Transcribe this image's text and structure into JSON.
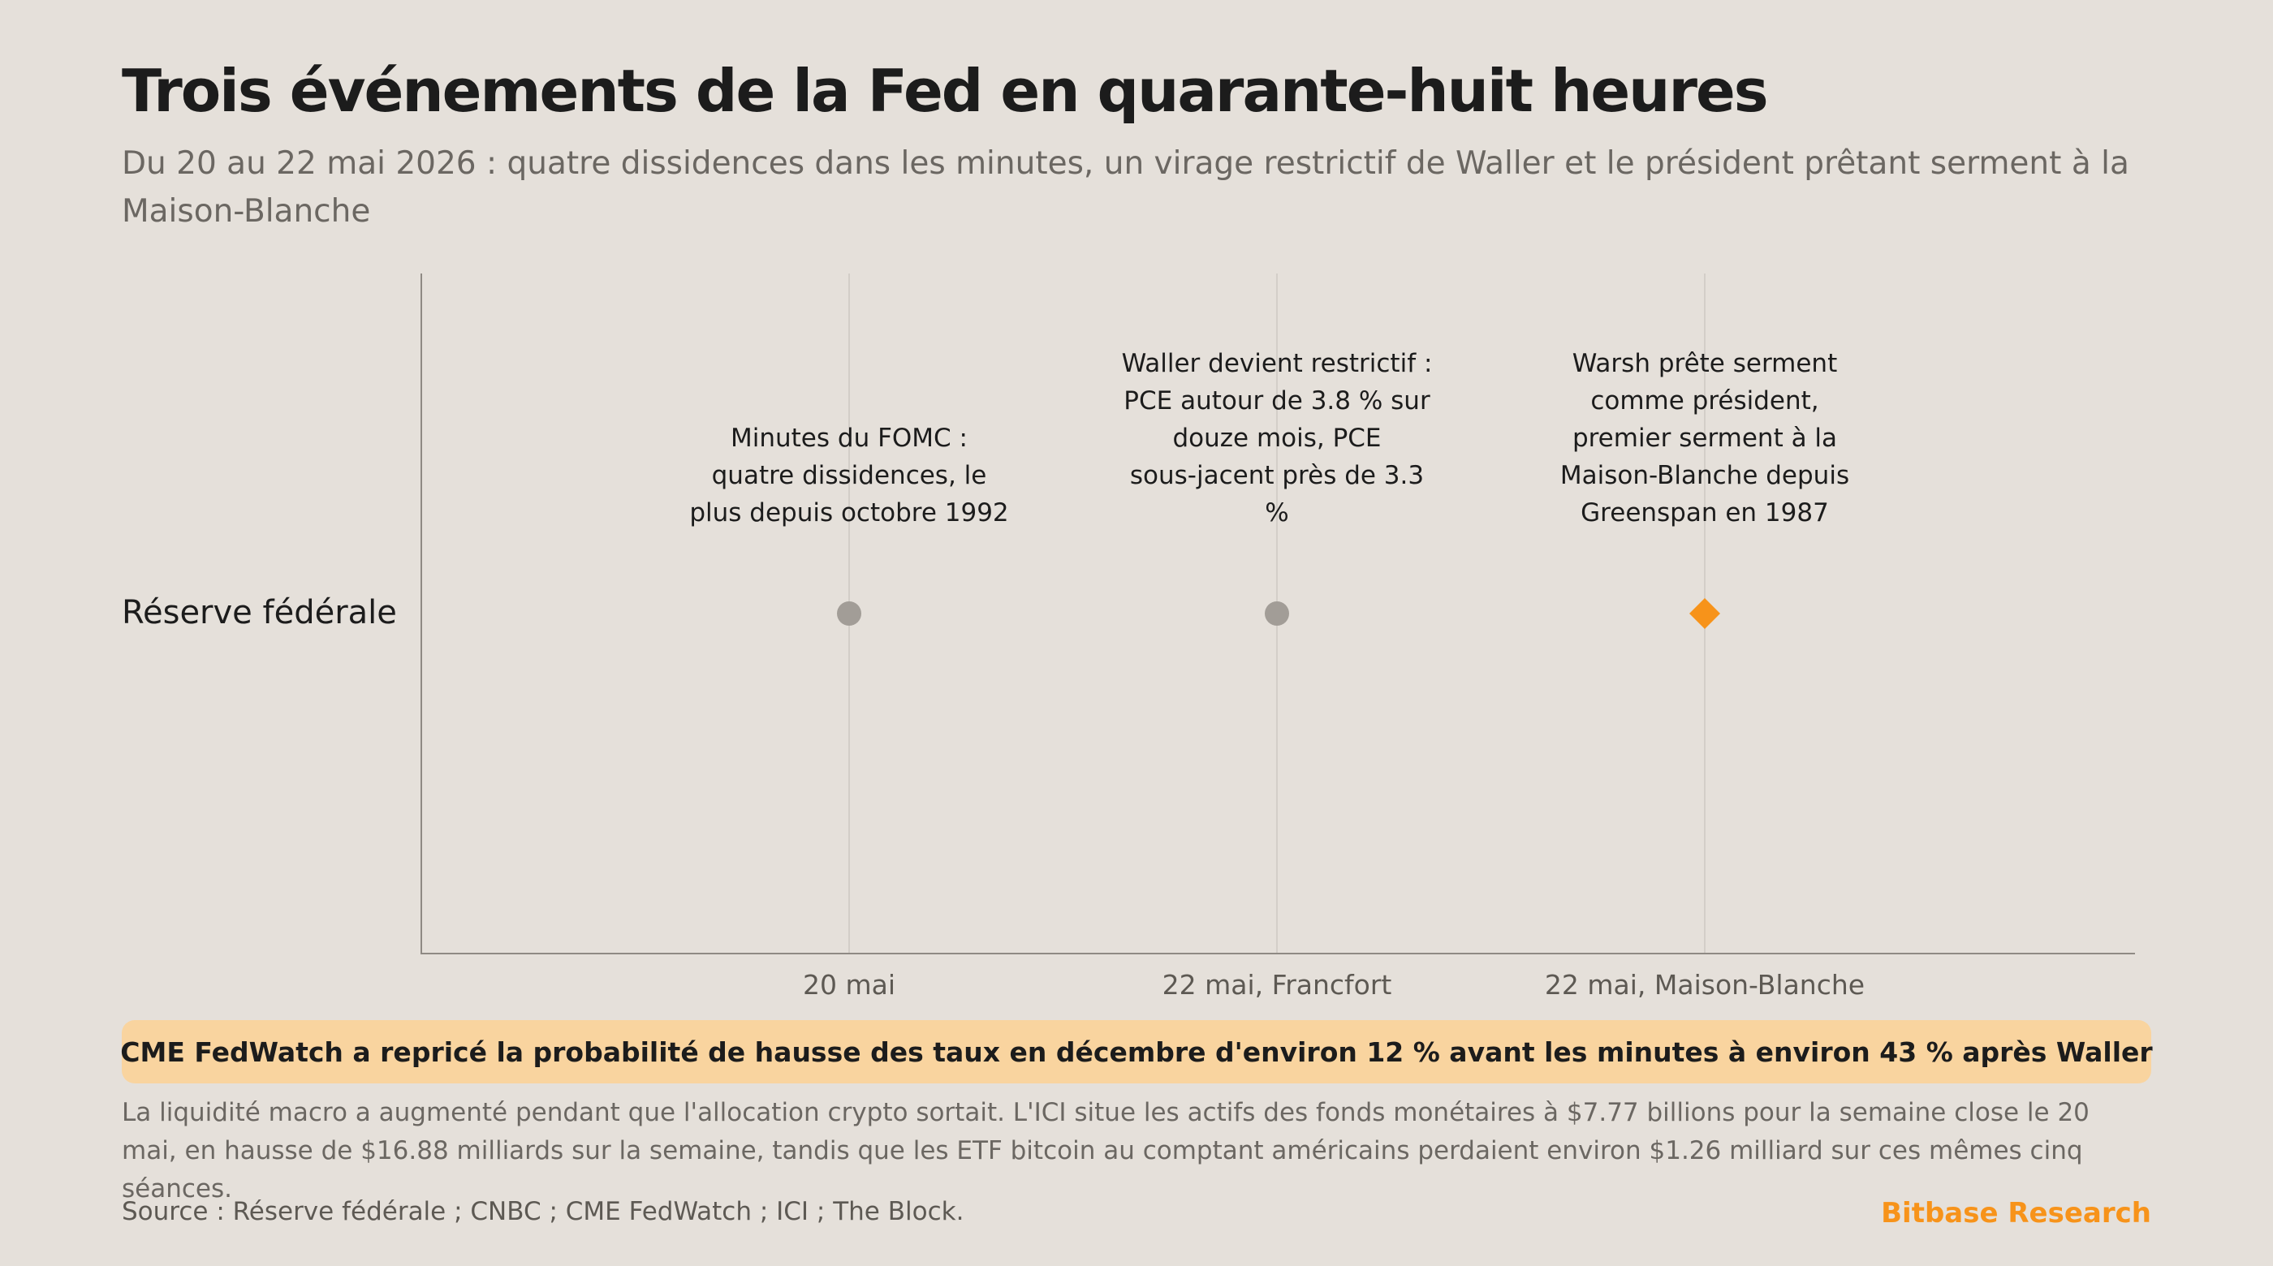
{
  "title": "Trois événements de la Fed en quarante-huit heures",
  "subtitle": "Du 20 au 22 mai 2026 : quatre dissidences dans les minutes, un virage restrictif de Waller et le président prêtant serment à la Maison-Blanche",
  "chart_data": {
    "type": "scatter",
    "row_label": "Réserve fédérale",
    "categories": [
      "20 mai",
      "22 mai, Francfort",
      "22 mai, Maison-Blanche"
    ],
    "events": [
      {
        "category": "20 mai",
        "annotation": [
          "Minutes du FOMC :",
          "quatre dissidences, le",
          "plus depuis octobre 1992"
        ],
        "marker": "circle",
        "color": "#a29d97"
      },
      {
        "category": "22 mai, Francfort",
        "annotation": [
          "Waller devient restrictif :",
          "PCE autour de 3.8 % sur",
          "douze mois, PCE",
          "sous-jacent près de 3.3",
          "%"
        ],
        "marker": "circle",
        "color": "#a29d97"
      },
      {
        "category": "22 mai, Maison-Blanche",
        "annotation": [
          "Warsh prête serment",
          "comme président,",
          "premier serment à la",
          "Maison-Blanche depuis",
          "Greenspan en 1987"
        ],
        "marker": "diamond",
        "color": "#f7931a"
      }
    ],
    "grid": true
  },
  "callout": "CME FedWatch a repricé la probabilité de hausse des taux en décembre d'environ 12 % avant les minutes à environ 43 % après Waller",
  "note": "La liquidité macro a augmenté pendant que l'allocation crypto sortait. L'ICI situe les actifs des fonds monétaires à $7.77 billions pour la semaine close le 20 mai, en hausse de $16.88 milliards sur la semaine, tandis que les ETF bitcoin au comptant américains perdaient environ $1.26 milliard sur ces mêmes cinq séances.",
  "source": "Source : Réserve fédérale ; CNBC ; CME FedWatch ; ICI ; The Block.",
  "brand": "Bitbase Research"
}
